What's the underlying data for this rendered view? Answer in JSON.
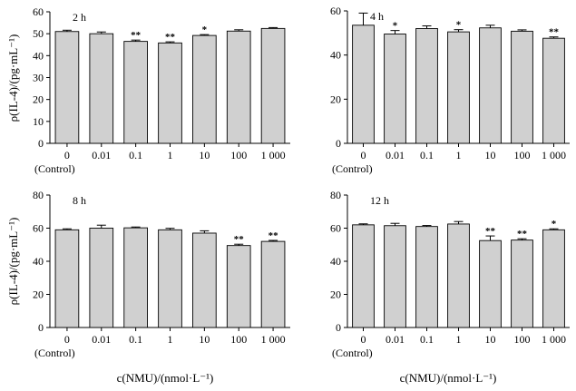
{
  "figure": {
    "xlabel_left": "c(NMU)/(nmol·L⁻¹)",
    "xlabel_right": "c(NMU)/(nmol·L⁻¹)",
    "ylabel_top": "ρ(IL-4)/(pg·mL⁻¹)",
    "ylabel_bottom": "ρ(IL-4)/(pg·mL⁻¹)"
  },
  "chart_data": [
    {
      "type": "bar",
      "title": "2 h",
      "categories": [
        "0",
        "0.01",
        "0.1",
        "1",
        "10",
        "100",
        "1 000"
      ],
      "control_label": "(Control)",
      "values": [
        51,
        50,
        46.5,
        45.8,
        49.2,
        51.2,
        52.4
      ],
      "errors": [
        0.6,
        0.8,
        0.6,
        0.5,
        0.4,
        0.6,
        0.4
      ],
      "significance": [
        "",
        "",
        "**",
        "**",
        "*",
        "",
        ""
      ],
      "ylim": [
        0,
        60
      ],
      "yticks": [
        0,
        10,
        20,
        30,
        40,
        50,
        60
      ],
      "xlabel": "c(NMU)/(nmol·L⁻¹)",
      "ylabel": "ρ(IL-4)/(pg·mL⁻¹)"
    },
    {
      "type": "bar",
      "title": "4 h",
      "categories": [
        "0",
        "0.01",
        "0.1",
        "1",
        "10",
        "100",
        "1 000"
      ],
      "control_label": "(Control)",
      "values": [
        53.5,
        49.5,
        52,
        50.5,
        52.3,
        50.8,
        47.6
      ],
      "errors": [
        5.5,
        1.6,
        1.2,
        1.0,
        1.2,
        0.6,
        0.6
      ],
      "significance": [
        "",
        "*",
        "",
        "*",
        "",
        "",
        "**"
      ],
      "ylim": [
        0,
        60
      ],
      "yticks": [
        0,
        20,
        40,
        60
      ],
      "xlabel": "c(NMU)/(nmol·L⁻¹)",
      "ylabel": "ρ(IL-4)/(pg·mL⁻¹)"
    },
    {
      "type": "bar",
      "title": "8 h",
      "categories": [
        "0",
        "0.01",
        "0.1",
        "1",
        "10",
        "100",
        "1 000"
      ],
      "control_label": "(Control)",
      "values": [
        59,
        60,
        60.2,
        59,
        57,
        49.5,
        52
      ],
      "errors": [
        0.6,
        1.8,
        0.5,
        0.9,
        1.4,
        0.8,
        0.6
      ],
      "significance": [
        "",
        "",
        "",
        "",
        "",
        "**",
        "**"
      ],
      "ylim": [
        0,
        80
      ],
      "yticks": [
        0,
        20,
        40,
        60,
        80
      ],
      "xlabel": "c(NMU)/(nmol·L⁻¹)",
      "ylabel": "ρ(IL-4)/(pg·mL⁻¹)"
    },
    {
      "type": "bar",
      "title": "12 h",
      "categories": [
        "0",
        "0.01",
        "0.1",
        "1",
        "10",
        "100",
        "1 000"
      ],
      "control_label": "(Control)",
      "values": [
        62,
        61.5,
        61,
        62.5,
        52.5,
        52.8,
        59
      ],
      "errors": [
        0.6,
        1.4,
        0.6,
        1.5,
        2.8,
        0.8,
        0.6
      ],
      "significance": [
        "",
        "",
        "",
        "",
        "**",
        "**",
        "*"
      ],
      "ylim": [
        0,
        80
      ],
      "yticks": [
        0,
        20,
        40,
        60,
        80
      ],
      "xlabel": "c(NMU)/(nmol·L⁻¹)",
      "ylabel": "ρ(IL-4)/(pg·mL⁻¹)"
    }
  ]
}
